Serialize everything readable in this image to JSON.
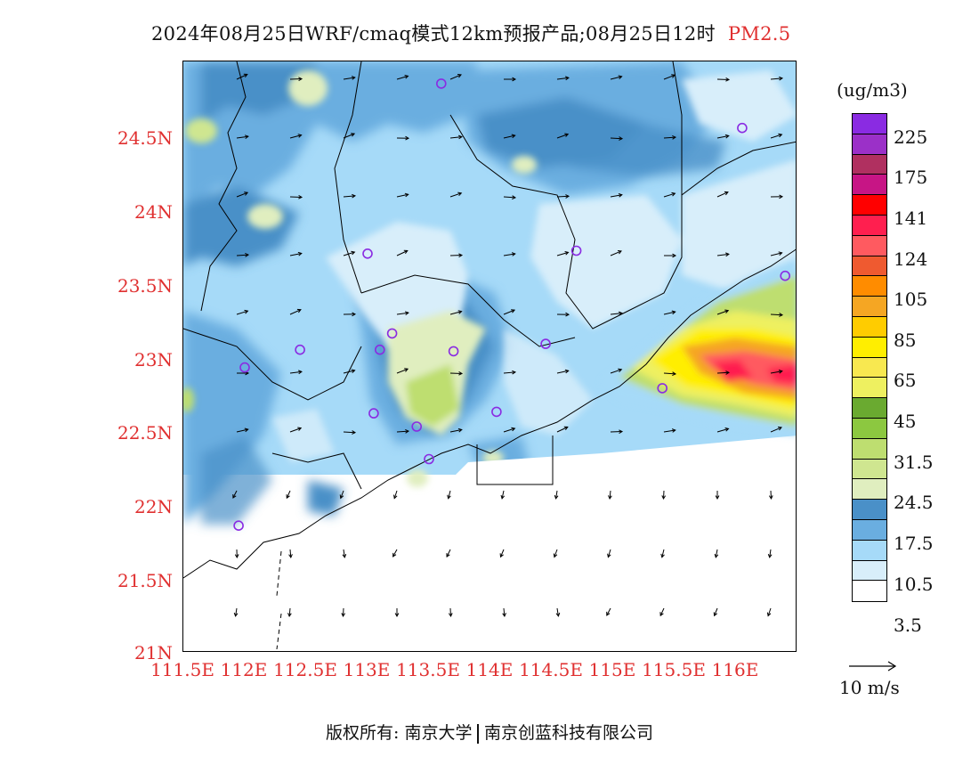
{
  "title": {
    "main": "2024年08月25日WRF/cmaq模式12km预报产品;08月25日12时",
    "species": "PM2.5"
  },
  "map": {
    "lon_range": [
      111.5,
      116.5
    ],
    "lat_range": [
      21.0,
      25.0
    ],
    "lat_ticks": [
      "24.5N",
      "24N",
      "23.5N",
      "23N",
      "22.5N",
      "22N",
      "21.5N",
      "21N"
    ],
    "lon_ticks": [
      "111.5E",
      "112E",
      "112.5E",
      "113E",
      "113.5E",
      "114E",
      "114.5E",
      "115E",
      "115.5E",
      "116E"
    ],
    "station_marker_color": "#8a2be2",
    "stations": [
      {
        "lon": 113.6,
        "lat": 24.85
      },
      {
        "lon": 116.05,
        "lat": 24.55
      },
      {
        "lon": 113.0,
        "lat": 23.7
      },
      {
        "lon": 114.7,
        "lat": 23.72
      },
      {
        "lon": 116.4,
        "lat": 23.55
      },
      {
        "lon": 112.45,
        "lat": 23.05
      },
      {
        "lon": 112.0,
        "lat": 22.93
      },
      {
        "lon": 113.1,
        "lat": 23.05
      },
      {
        "lon": 113.2,
        "lat": 23.16
      },
      {
        "lon": 113.7,
        "lat": 23.04
      },
      {
        "lon": 114.45,
        "lat": 23.09
      },
      {
        "lon": 113.05,
        "lat": 22.62
      },
      {
        "lon": 113.4,
        "lat": 22.53
      },
      {
        "lon": 114.05,
        "lat": 22.63
      },
      {
        "lon": 113.5,
        "lat": 22.31
      },
      {
        "lon": 115.4,
        "lat": 22.79
      },
      {
        "lon": 111.95,
        "lat": 21.86
      }
    ]
  },
  "legend": {
    "unit": "(ug/m3)",
    "colors": [
      "#8a2be2",
      "#9b30c8",
      "#b03060",
      "#c71585",
      "#ff0000",
      "#ff1f4f",
      "#ff5a60",
      "#ef5a30",
      "#ff8c00",
      "#f5a623",
      "#ffcc00",
      "#ffee00",
      "#f8e850",
      "#eef060",
      "#6aaa30",
      "#8cc840",
      "#bede70",
      "#cfe690",
      "#e0eebf",
      "#4a90c8",
      "#6aaee0",
      "#a6daf8",
      "#d8eefa",
      "#ffffff"
    ],
    "labels": [
      "225",
      "175",
      "141",
      "124",
      "105",
      "85",
      "65",
      "45",
      "31.5",
      "24.5",
      "17.5",
      "10.5",
      "3.5"
    ],
    "vector_label": "10 m/s"
  },
  "footer": {
    "prefix": "版权所有:",
    "org1": "南京大学",
    "org2": "南京创蓝科技有限公司"
  }
}
